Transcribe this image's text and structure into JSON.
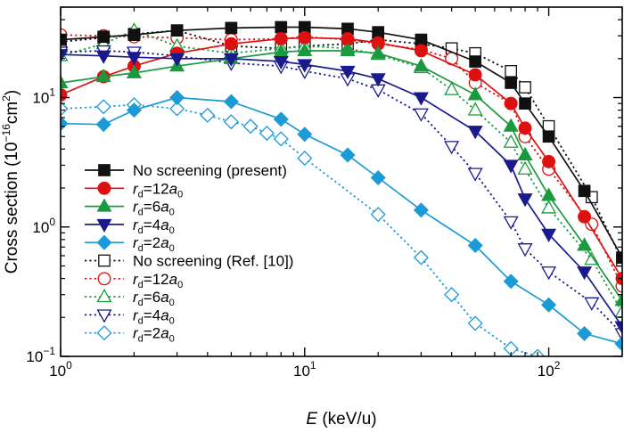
{
  "chart_data": {
    "type": "line",
    "title": "",
    "xlabel": {
      "prefix": "",
      "italic": "E",
      "suffix": " (keV/u)"
    },
    "ylabel": {
      "main": "Cross section (10",
      "sup": "−16",
      "mid": "cm",
      "sup2": "2",
      "end": ")"
    },
    "xscale": "log",
    "yscale": "log",
    "xlim": [
      1,
      200
    ],
    "ylim": [
      0.1,
      50
    ],
    "x_ticks": [
      {
        "value": 1,
        "base": "10",
        "exp": "0"
      },
      {
        "value": 10,
        "base": "10",
        "exp": "1"
      },
      {
        "value": 100,
        "base": "10",
        "exp": "2"
      }
    ],
    "y_ticks": [
      {
        "value": 0.1,
        "base": "10",
        "exp": "−1"
      },
      {
        "value": 1,
        "base": "10",
        "exp": "0"
      },
      {
        "value": 10,
        "base": "10",
        "exp": "1"
      }
    ],
    "legend_position": "bottom-left",
    "series": [
      {
        "id": "ns-present",
        "label": "No screening (present)",
        "color": "#111111",
        "dash": "solid",
        "marker": "square",
        "filled": true,
        "points": [
          [
            1,
            28
          ],
          [
            1.5,
            29.5
          ],
          [
            2,
            30.5
          ],
          [
            3,
            33
          ],
          [
            5,
            34.5
          ],
          [
            8,
            35
          ],
          [
            10,
            35
          ],
          [
            15,
            34
          ],
          [
            20,
            32
          ],
          [
            30,
            28
          ],
          [
            50,
            19
          ],
          [
            70,
            13
          ],
          [
            80,
            9
          ],
          [
            100,
            5
          ],
          [
            140,
            1.9
          ],
          [
            200,
            0.58
          ]
        ]
      },
      {
        "id": "rd12",
        "label": "12",
        "color": "#dd1111",
        "dash": "solid",
        "marker": "circle",
        "filled": true,
        "points": [
          [
            1,
            10.5
          ],
          [
            1.5,
            14.5
          ],
          [
            2,
            17.5
          ],
          [
            3,
            22
          ],
          [
            5,
            26
          ],
          [
            8,
            28.5
          ],
          [
            10,
            29
          ],
          [
            15,
            28.5
          ],
          [
            20,
            26.5
          ],
          [
            30,
            23
          ],
          [
            50,
            15
          ],
          [
            70,
            9
          ],
          [
            80,
            5.8
          ],
          [
            100,
            3.2
          ],
          [
            140,
            1.2
          ],
          [
            200,
            0.4
          ]
        ]
      },
      {
        "id": "rd6",
        "label": "6",
        "color": "#1a9a3e",
        "dash": "solid",
        "marker": "triangle-up",
        "filled": true,
        "points": [
          [
            1,
            13
          ],
          [
            1.5,
            14.5
          ],
          [
            2,
            15.5
          ],
          [
            3,
            17.5
          ],
          [
            5,
            20
          ],
          [
            8,
            22.5
          ],
          [
            10,
            23
          ],
          [
            15,
            23
          ],
          [
            20,
            22
          ],
          [
            30,
            17.5
          ],
          [
            50,
            10.5
          ],
          [
            70,
            6
          ],
          [
            80,
            3.6
          ],
          [
            100,
            1.75
          ],
          [
            140,
            0.72
          ],
          [
            200,
            0.27
          ]
        ]
      },
      {
        "id": "rd4",
        "label": "4",
        "color": "#1a1a8c",
        "dash": "solid",
        "marker": "triangle-down",
        "filled": true,
        "points": [
          [
            1,
            21.5
          ],
          [
            1.5,
            21
          ],
          [
            2,
            20.5
          ],
          [
            3,
            20
          ],
          [
            5,
            20
          ],
          [
            8,
            19
          ],
          [
            10,
            18
          ],
          [
            15,
            16
          ],
          [
            20,
            14
          ],
          [
            30,
            10
          ],
          [
            50,
            5.5
          ],
          [
            70,
            3
          ],
          [
            80,
            1.65
          ],
          [
            100,
            0.88
          ],
          [
            140,
            0.45
          ],
          [
            200,
            0.17
          ]
        ]
      },
      {
        "id": "rd2",
        "label": "2",
        "color": "#1a9ad6",
        "dash": "solid",
        "marker": "diamond",
        "filled": true,
        "points": [
          [
            1,
            6.3
          ],
          [
            1.5,
            6.2
          ],
          [
            2,
            8
          ],
          [
            3,
            10
          ],
          [
            5,
            9.3
          ],
          [
            8,
            6.8
          ],
          [
            10,
            5.2
          ],
          [
            15,
            3.6
          ],
          [
            20,
            2.4
          ],
          [
            30,
            1.35
          ],
          [
            50,
            0.72
          ],
          [
            70,
            0.38
          ],
          [
            100,
            0.25
          ],
          [
            140,
            0.15
          ],
          [
            200,
            0.125
          ]
        ]
      },
      {
        "id": "ns-ref",
        "label": "No screening (Ref. [10])",
        "color": "#111111",
        "dash": "dot",
        "marker": "square",
        "filled": false,
        "points": [
          [
            1,
            27
          ],
          [
            1.5,
            29
          ],
          [
            2,
            31
          ],
          [
            3,
            33
          ],
          [
            5,
            25
          ],
          [
            8,
            24
          ],
          [
            10,
            25
          ],
          [
            15,
            26
          ],
          [
            20,
            28
          ],
          [
            30,
            26
          ],
          [
            40,
            24
          ],
          [
            50,
            22
          ],
          [
            70,
            16
          ],
          [
            80,
            12
          ],
          [
            100,
            6
          ],
          [
            150,
            1.7
          ],
          [
            200,
            0.55
          ]
        ]
      },
      {
        "id": "ref-rd12",
        "label": "12",
        "color": "#dd1111",
        "dash": "dot",
        "marker": "circle",
        "filled": false,
        "points": [
          [
            1,
            30.5
          ],
          [
            1.5,
            30
          ],
          [
            2,
            29.5
          ],
          [
            3,
            29
          ],
          [
            5,
            28
          ],
          [
            8,
            28.5
          ],
          [
            10,
            29.5
          ],
          [
            15,
            28
          ],
          [
            20,
            26
          ],
          [
            30,
            23.5
          ],
          [
            40,
            20
          ],
          [
            50,
            13
          ],
          [
            70,
            9
          ],
          [
            80,
            5
          ],
          [
            100,
            2.8
          ],
          [
            150,
            1.05
          ],
          [
            200,
            0.35
          ]
        ]
      },
      {
        "id": "ref-rd6",
        "label": "6",
        "color": "#1a9a3e",
        "dash": "dot",
        "marker": "triangle-up",
        "filled": false,
        "points": [
          [
            1,
            21
          ],
          [
            1.5,
            26
          ],
          [
            2,
            33
          ],
          [
            3,
            25
          ],
          [
            5,
            22
          ],
          [
            8,
            24
          ],
          [
            10,
            25
          ],
          [
            15,
            24
          ],
          [
            20,
            21.5
          ],
          [
            30,
            17
          ],
          [
            40,
            11.5
          ],
          [
            50,
            8
          ],
          [
            70,
            4.5
          ],
          [
            80,
            2.8
          ],
          [
            100,
            1.4
          ],
          [
            150,
            0.56
          ],
          [
            200,
            0.22
          ]
        ]
      },
      {
        "id": "ref-rd4",
        "label": "4",
        "color": "#1a1a8c",
        "dash": "dot",
        "marker": "triangle-down",
        "filled": false,
        "points": [
          [
            1,
            22.5
          ],
          [
            1.5,
            23
          ],
          [
            2,
            22.5
          ],
          [
            3,
            21
          ],
          [
            5,
            18.5
          ],
          [
            8,
            17.5
          ],
          [
            10,
            16
          ],
          [
            15,
            14
          ],
          [
            20,
            11.5
          ],
          [
            30,
            7.5
          ],
          [
            40,
            4.2
          ],
          [
            50,
            2.6
          ],
          [
            70,
            1.1
          ],
          [
            80,
            0.68
          ],
          [
            100,
            0.45
          ],
          [
            150,
            0.26
          ],
          [
            200,
            0.15
          ]
        ]
      },
      {
        "id": "ref-rd2",
        "label": "2",
        "color": "#1a9ad6",
        "dash": "dot",
        "marker": "diamond",
        "filled": false,
        "points": [
          [
            1,
            8.2
          ],
          [
            1.5,
            8.5
          ],
          [
            2,
            8.8
          ],
          [
            3,
            8.2
          ],
          [
            4,
            7.3
          ],
          [
            5,
            6.5
          ],
          [
            6,
            6
          ],
          [
            7,
            5.3
          ],
          [
            8,
            4.8
          ],
          [
            10,
            3.4
          ],
          [
            20,
            1.25
          ],
          [
            30,
            0.58
          ],
          [
            40,
            0.3
          ],
          [
            50,
            0.18
          ],
          [
            70,
            0.115
          ],
          [
            90,
            0.1
          ]
        ]
      }
    ]
  }
}
